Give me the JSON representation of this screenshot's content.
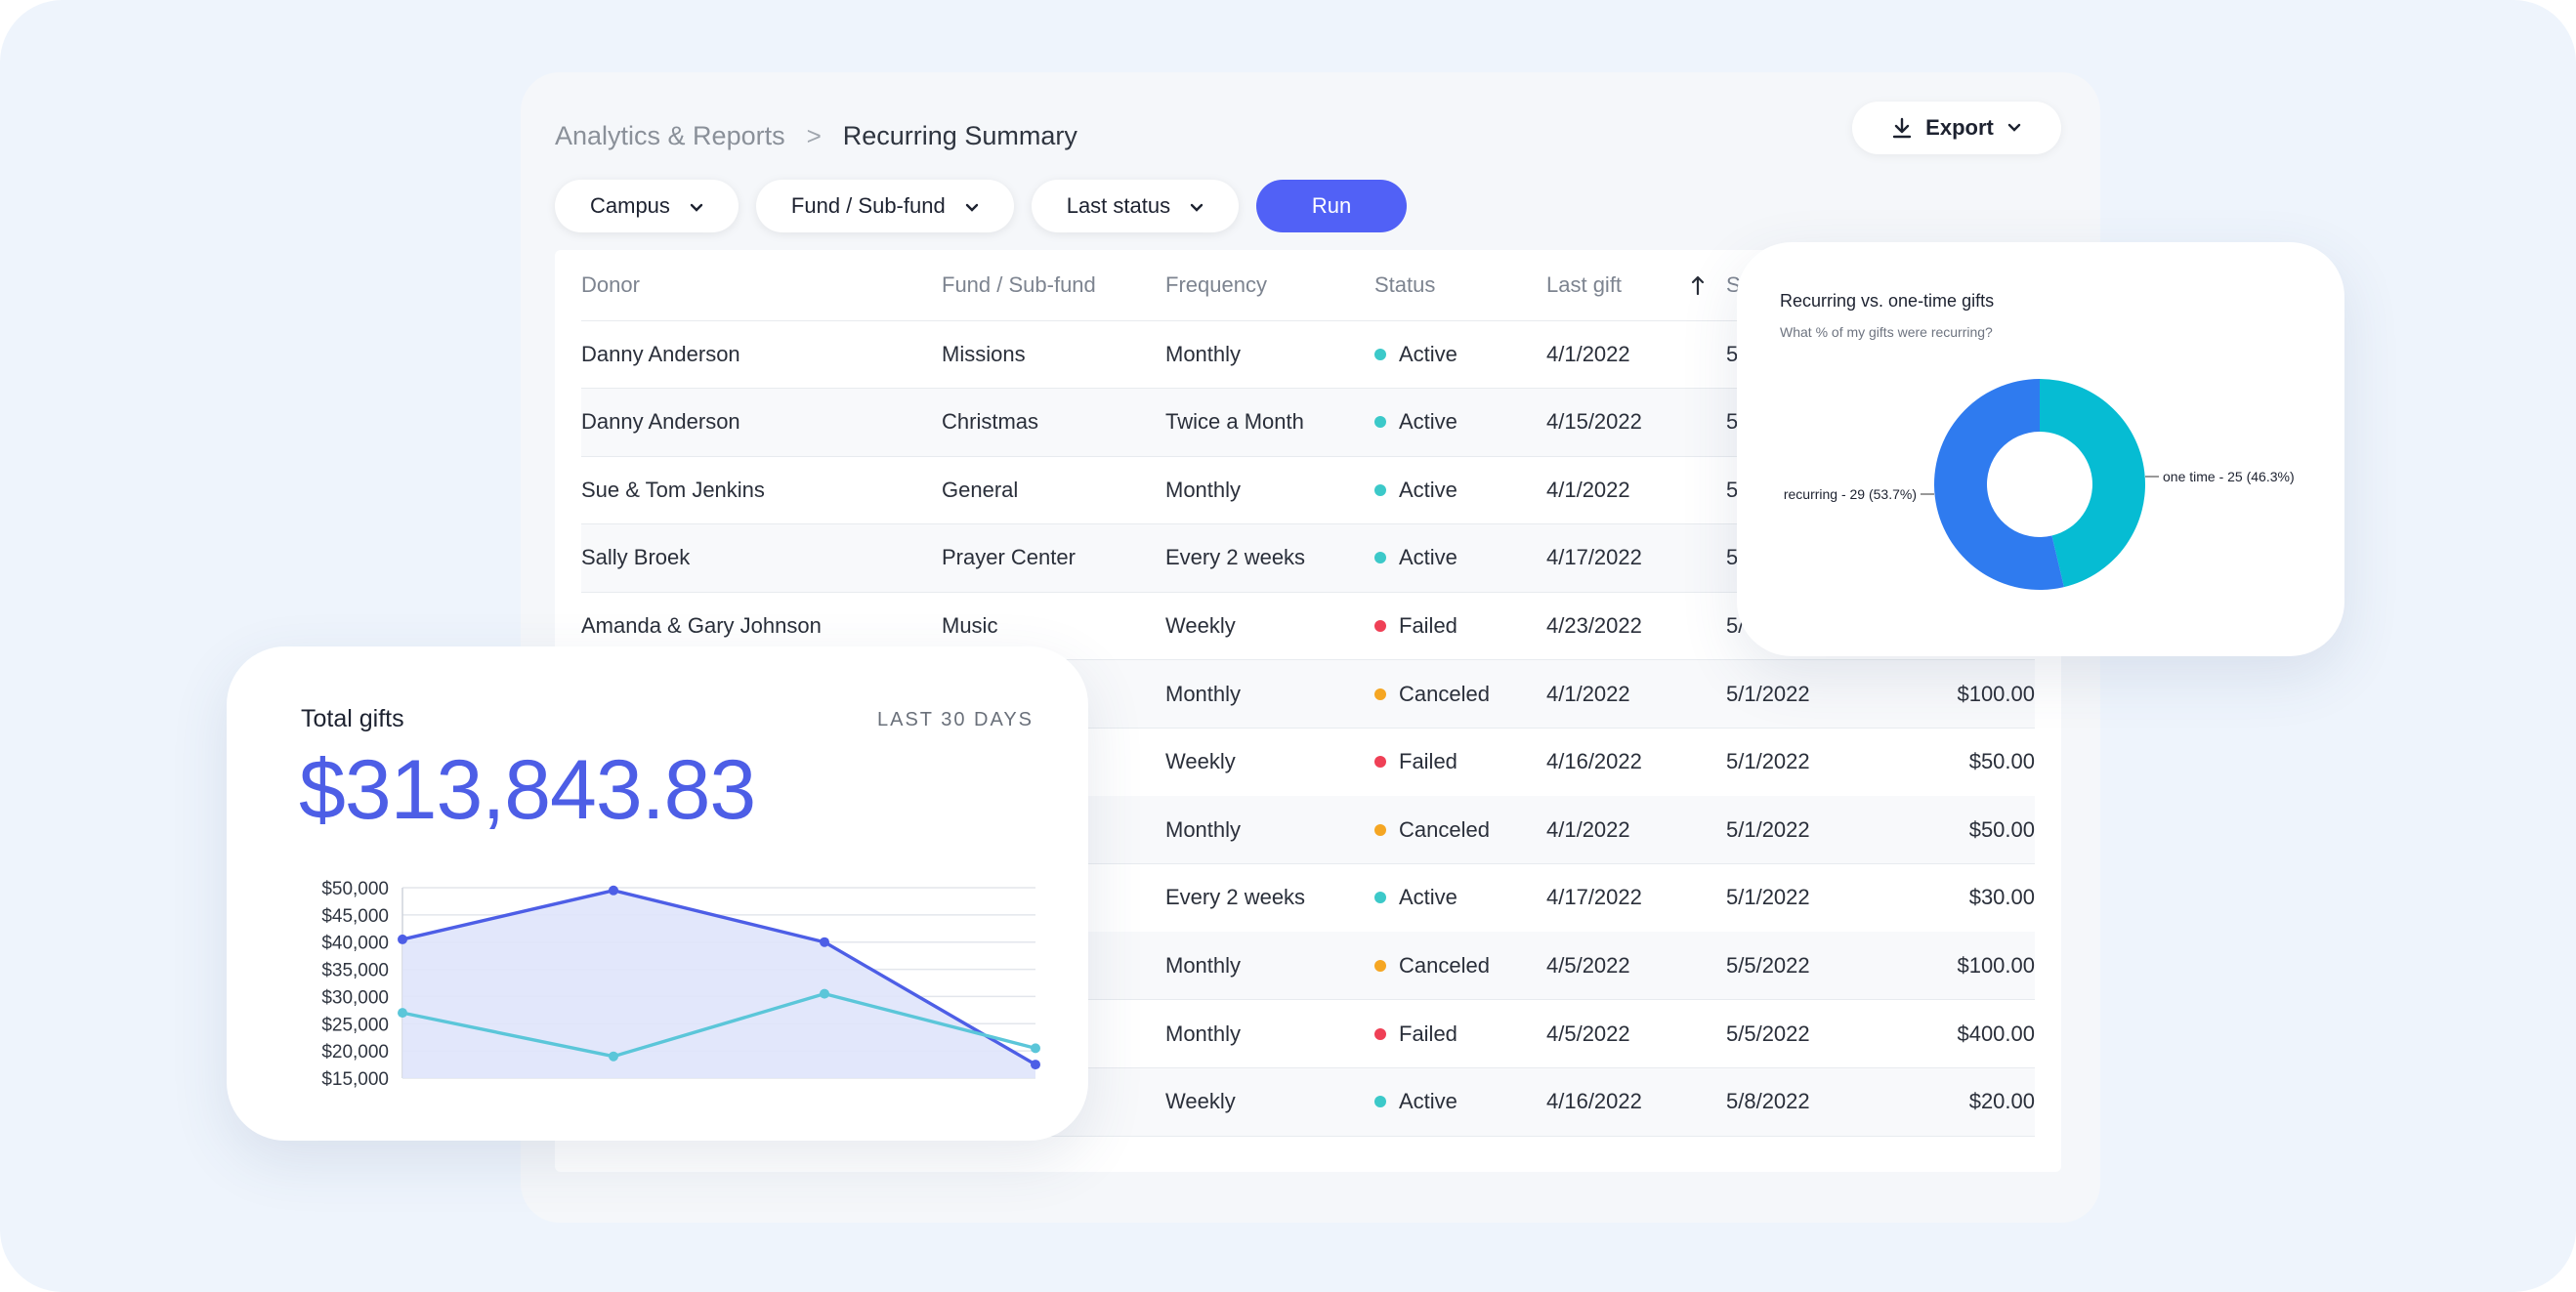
{
  "breadcrumb": {
    "parent": "Analytics & Reports",
    "separator": ">",
    "current": "Recurring Summary"
  },
  "toolbar": {
    "export_label": "Export",
    "run_label": "Run"
  },
  "filters": [
    {
      "label": "Campus"
    },
    {
      "label": "Fund / Sub-fund"
    },
    {
      "label": "Last status"
    }
  ],
  "icons": {
    "export": "download-icon",
    "dropdown": "chevron-down-icon",
    "sort": "arrow-up-icon"
  },
  "colors": {
    "accent": "#5161f6",
    "active": "#3cc9c9",
    "failed": "#ef4056",
    "canceled": "#f5a623"
  },
  "table": {
    "headers": {
      "donor": "Donor",
      "fund": "Fund / Sub-fund",
      "frequency": "Frequency",
      "status": "Status",
      "last_gift": "Last gift",
      "next_gift": "S"
    },
    "rows": [
      {
        "donor": "Danny Anderson",
        "fund": "Missions",
        "frequency": "Monthly",
        "status": "Active",
        "status_color": "#3cc9c9",
        "last": "4/1/2022",
        "next": "5",
        "amount": ""
      },
      {
        "donor": "Danny Anderson",
        "fund": "Christmas",
        "frequency": "Twice a Month",
        "status": "Active",
        "status_color": "#3cc9c9",
        "last": "4/15/2022",
        "next": "5",
        "amount": ""
      },
      {
        "donor": "Sue & Tom Jenkins",
        "fund": "General",
        "frequency": "Monthly",
        "status": "Active",
        "status_color": "#3cc9c9",
        "last": "4/1/2022",
        "next": "5",
        "amount": ""
      },
      {
        "donor": "Sally Broek",
        "fund": "Prayer Center",
        "frequency": "Every 2 weeks",
        "status": "Active",
        "status_color": "#3cc9c9",
        "last": "4/17/2022",
        "next": "5",
        "amount": ""
      },
      {
        "donor": "Amanda & Gary Johnson",
        "fund": "Music",
        "frequency": "Weekly",
        "status": "Failed",
        "status_color": "#ef4056",
        "last": "4/23/2022",
        "next": "5/",
        "amount": ""
      },
      {
        "donor": "",
        "fund": "",
        "frequency": "Monthly",
        "status": "Canceled",
        "status_color": "#f5a623",
        "last": "4/1/2022",
        "next": "5/1/2022",
        "amount": "$100.00"
      },
      {
        "donor": "",
        "fund": "",
        "frequency": "Weekly",
        "status": "Failed",
        "status_color": "#ef4056",
        "last": "4/16/2022",
        "next": "5/1/2022",
        "amount": "$50.00"
      },
      {
        "donor": "",
        "fund": "",
        "frequency": "Monthly",
        "status": "Canceled",
        "status_color": "#f5a623",
        "last": "4/1/2022",
        "next": "5/1/2022",
        "amount": "$50.00"
      },
      {
        "donor": "",
        "fund": "",
        "frequency": "Every 2 weeks",
        "status": "Active",
        "status_color": "#3cc9c9",
        "last": "4/17/2022",
        "next": "5/1/2022",
        "amount": "$30.00"
      },
      {
        "donor": "",
        "fund": "",
        "frequency": "Monthly",
        "status": "Canceled",
        "status_color": "#f5a623",
        "last": "4/5/2022",
        "next": "5/5/2022",
        "amount": "$100.00"
      },
      {
        "donor": "",
        "fund": "",
        "frequency": "Monthly",
        "status": "Failed",
        "status_color": "#ef4056",
        "last": "4/5/2022",
        "next": "5/5/2022",
        "amount": "$400.00"
      },
      {
        "donor": "",
        "fund": "",
        "frequency": "Weekly",
        "status": "Active",
        "status_color": "#3cc9c9",
        "last": "4/16/2022",
        "next": "5/8/2022",
        "amount": "$20.00"
      }
    ]
  },
  "gifts_card": {
    "title": "Total gifts",
    "period": "LAST 30 DAYS",
    "total": "$313,843.83"
  },
  "chart_data": [
    {
      "type": "area",
      "title": "",
      "xlabel": "",
      "ylabel": "",
      "ylim": [
        15000,
        50000
      ],
      "yticks": [
        "$50,000",
        "$45,000",
        "$40,000",
        "$35,000",
        "$30,000",
        "$25,000",
        "$20,000",
        "$15,000"
      ],
      "ytick_values": [
        50000,
        45000,
        40000,
        35000,
        30000,
        25000,
        20000,
        15000
      ],
      "x": [
        0,
        1,
        2,
        3
      ],
      "grid": true,
      "series": [
        {
          "values": [
            40500,
            49500,
            40000,
            17500
          ],
          "color": "#4d5ee6",
          "fill": "#dfe4fb"
        },
        {
          "values": [
            27000,
            19000,
            30500,
            20500
          ],
          "color": "#5bc6d9"
        }
      ]
    },
    {
      "type": "pie",
      "donut": true,
      "title": "Recurring vs. one-time gifts",
      "subtitle": "What % of my gifts were recurring?",
      "slices": [
        {
          "label": "recurring - 29 (53.7%)",
          "value": 29,
          "color": "#2f7bef"
        },
        {
          "label": "one time - 25 (46.3%)",
          "value": 25,
          "color": "#06bcd3"
        }
      ]
    }
  ]
}
